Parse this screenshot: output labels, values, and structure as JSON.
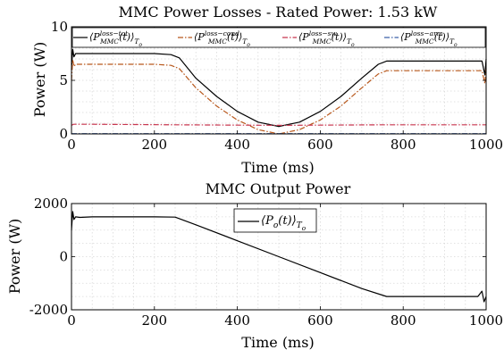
{
  "chart_data": [
    {
      "type": "line",
      "title": "MMC Power Losses - Rated Power: 1.53 kW",
      "xlabel": "Time (ms)",
      "ylabel": "Power (W)",
      "xlim": [
        0,
        1000
      ],
      "ylim": [
        0,
        10
      ],
      "xticks": [
        "0",
        "200",
        "400",
        "600",
        "800",
        "1000"
      ],
      "yticks": [
        "0",
        "5",
        "10"
      ],
      "grid": true,
      "legend_position": "top",
      "series": [
        {
          "name": "⟨P_MMC^{loss−tot}(t)⟩_{T_o}",
          "legend_main": "⟨P",
          "legend_sup": "loss−tot",
          "legend_sub": "MMC",
          "legend_tail": "(t)⟩",
          "legend_tsub": "T",
          "legend_tsub2": "o",
          "color": "#000000",
          "dash": "",
          "x": [
            0,
            3,
            6,
            10,
            20,
            50,
            100,
            150,
            200,
            240,
            260,
            300,
            350,
            400,
            450,
            500,
            550,
            600,
            650,
            700,
            740,
            760,
            800,
            850,
            900,
            950,
            990,
            997,
            1000
          ],
          "y": [
            6.0,
            7.9,
            7.2,
            7.5,
            7.5,
            7.5,
            7.5,
            7.5,
            7.5,
            7.4,
            7.1,
            5.2,
            3.5,
            2.1,
            1.1,
            0.7,
            1.1,
            2.1,
            3.5,
            5.2,
            6.5,
            6.8,
            6.8,
            6.8,
            6.8,
            6.8,
            6.8,
            5.5,
            7.0
          ]
        },
        {
          "name": "⟨P_MMC^{loss−cond}(t)⟩_{T_o}",
          "legend_main": "⟨P",
          "legend_sup": "loss−cond",
          "legend_sub": "MMC",
          "legend_tail": "(t)⟩",
          "legend_tsub": "T",
          "legend_tsub2": "o",
          "color": "#b8581c",
          "dash": "6 2 1.5 2",
          "x": [
            0,
            3,
            6,
            10,
            20,
            50,
            100,
            150,
            200,
            240,
            260,
            300,
            350,
            400,
            450,
            500,
            550,
            600,
            650,
            700,
            740,
            760,
            800,
            850,
            900,
            950,
            990,
            997,
            1000
          ],
          "y": [
            5.0,
            6.9,
            6.3,
            6.5,
            6.5,
            6.5,
            6.5,
            6.5,
            6.5,
            6.4,
            6.1,
            4.3,
            2.6,
            1.3,
            0.4,
            0.0,
            0.4,
            1.3,
            2.6,
            4.3,
            5.6,
            5.9,
            5.9,
            5.9,
            5.9,
            5.9,
            5.9,
            4.7,
            6.1
          ]
        },
        {
          "name": "⟨P_MMC^{loss−sw}(t)⟩_{T_o}",
          "legend_main": "⟨P",
          "legend_sup": "loss−sw",
          "legend_sub": "MMC",
          "legend_tail": "(t)⟩",
          "legend_tsub": "T",
          "legend_tsub2": "o",
          "color": "#c8364f",
          "dash": "6 2 1.5 2",
          "x": [
            0,
            5,
            50,
            250,
            500,
            750,
            1000
          ],
          "y": [
            0.8,
            0.9,
            0.9,
            0.85,
            0.8,
            0.85,
            0.85
          ]
        },
        {
          "name": "⟨P_MMC^{loss−arm}(t)⟩_{T_o}",
          "legend_main": "⟨P",
          "legend_sup": "loss−arm",
          "legend_sub": "MMC",
          "legend_tail": "(t)⟩",
          "legend_tsub": "T",
          "legend_tsub2": "o",
          "color": "#3b5fa8",
          "dash": "6 2 1.5 2",
          "x": [
            0,
            1000
          ],
          "y": [
            0.02,
            0.02
          ]
        }
      ]
    },
    {
      "type": "line",
      "title": "MMC Output Power",
      "xlabel": "Time (ms)",
      "ylabel": "Power (W)",
      "xlim": [
        0,
        1000
      ],
      "ylim": [
        -2000,
        2000
      ],
      "xticks": [
        "0",
        "200",
        "400",
        "600",
        "800",
        "1000"
      ],
      "yticks": [
        "2000",
        "0",
        "-2000"
      ],
      "grid": true,
      "legend_position": "top-center",
      "series": [
        {
          "name": "⟨P_o(t)⟩_{T_o}",
          "legend_main": "⟨P",
          "legend_sub": "o",
          "legend_tail": "(t)⟩",
          "legend_tsub": "T",
          "legend_tsub2": "o",
          "color": "#000000",
          "dash": "",
          "x": [
            0,
            3,
            6,
            10,
            20,
            50,
            100,
            150,
            200,
            250,
            300,
            400,
            500,
            600,
            700,
            760,
            800,
            900,
            980,
            990,
            995,
            1000
          ],
          "y": [
            1000,
            1700,
            1400,
            1500,
            1480,
            1500,
            1500,
            1500,
            1500,
            1490,
            1200,
            600,
            0,
            -600,
            -1200,
            -1500,
            -1500,
            -1500,
            -1500,
            -1300,
            -1700,
            -1500
          ]
        }
      ]
    }
  ]
}
